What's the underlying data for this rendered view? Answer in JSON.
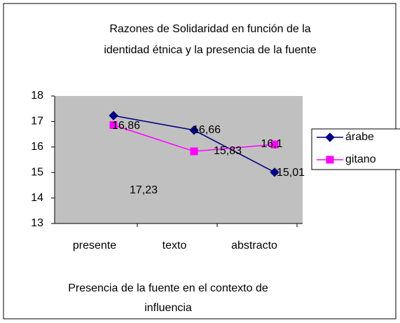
{
  "chart_data": {
    "type": "line",
    "title": [
      "Razones de Solidaridad en función de la",
      "identidad étnica y la presencia de la fuente"
    ],
    "xlabel": [
      "Presencia de la fuente en el contexto de",
      "influencia"
    ],
    "categories": [
      "presente",
      "texto",
      "abstracto"
    ],
    "series": [
      {
        "name": "árabe",
        "color": "#000080",
        "marker": "diamond",
        "values": [
          17.23,
          16.66,
          15.01
        ],
        "value_labels": [
          "17,23",
          "16,66",
          "15,01"
        ]
      },
      {
        "name": "gitano",
        "color": "#ff00ff",
        "marker": "square",
        "values": [
          16.86,
          15.83,
          16.1
        ],
        "value_labels": [
          "16,86",
          "15,83",
          "16,1"
        ]
      }
    ],
    "ylim": [
      13,
      18
    ],
    "yticks": [
      13,
      14,
      15,
      16,
      17,
      18
    ],
    "legend": "right"
  }
}
